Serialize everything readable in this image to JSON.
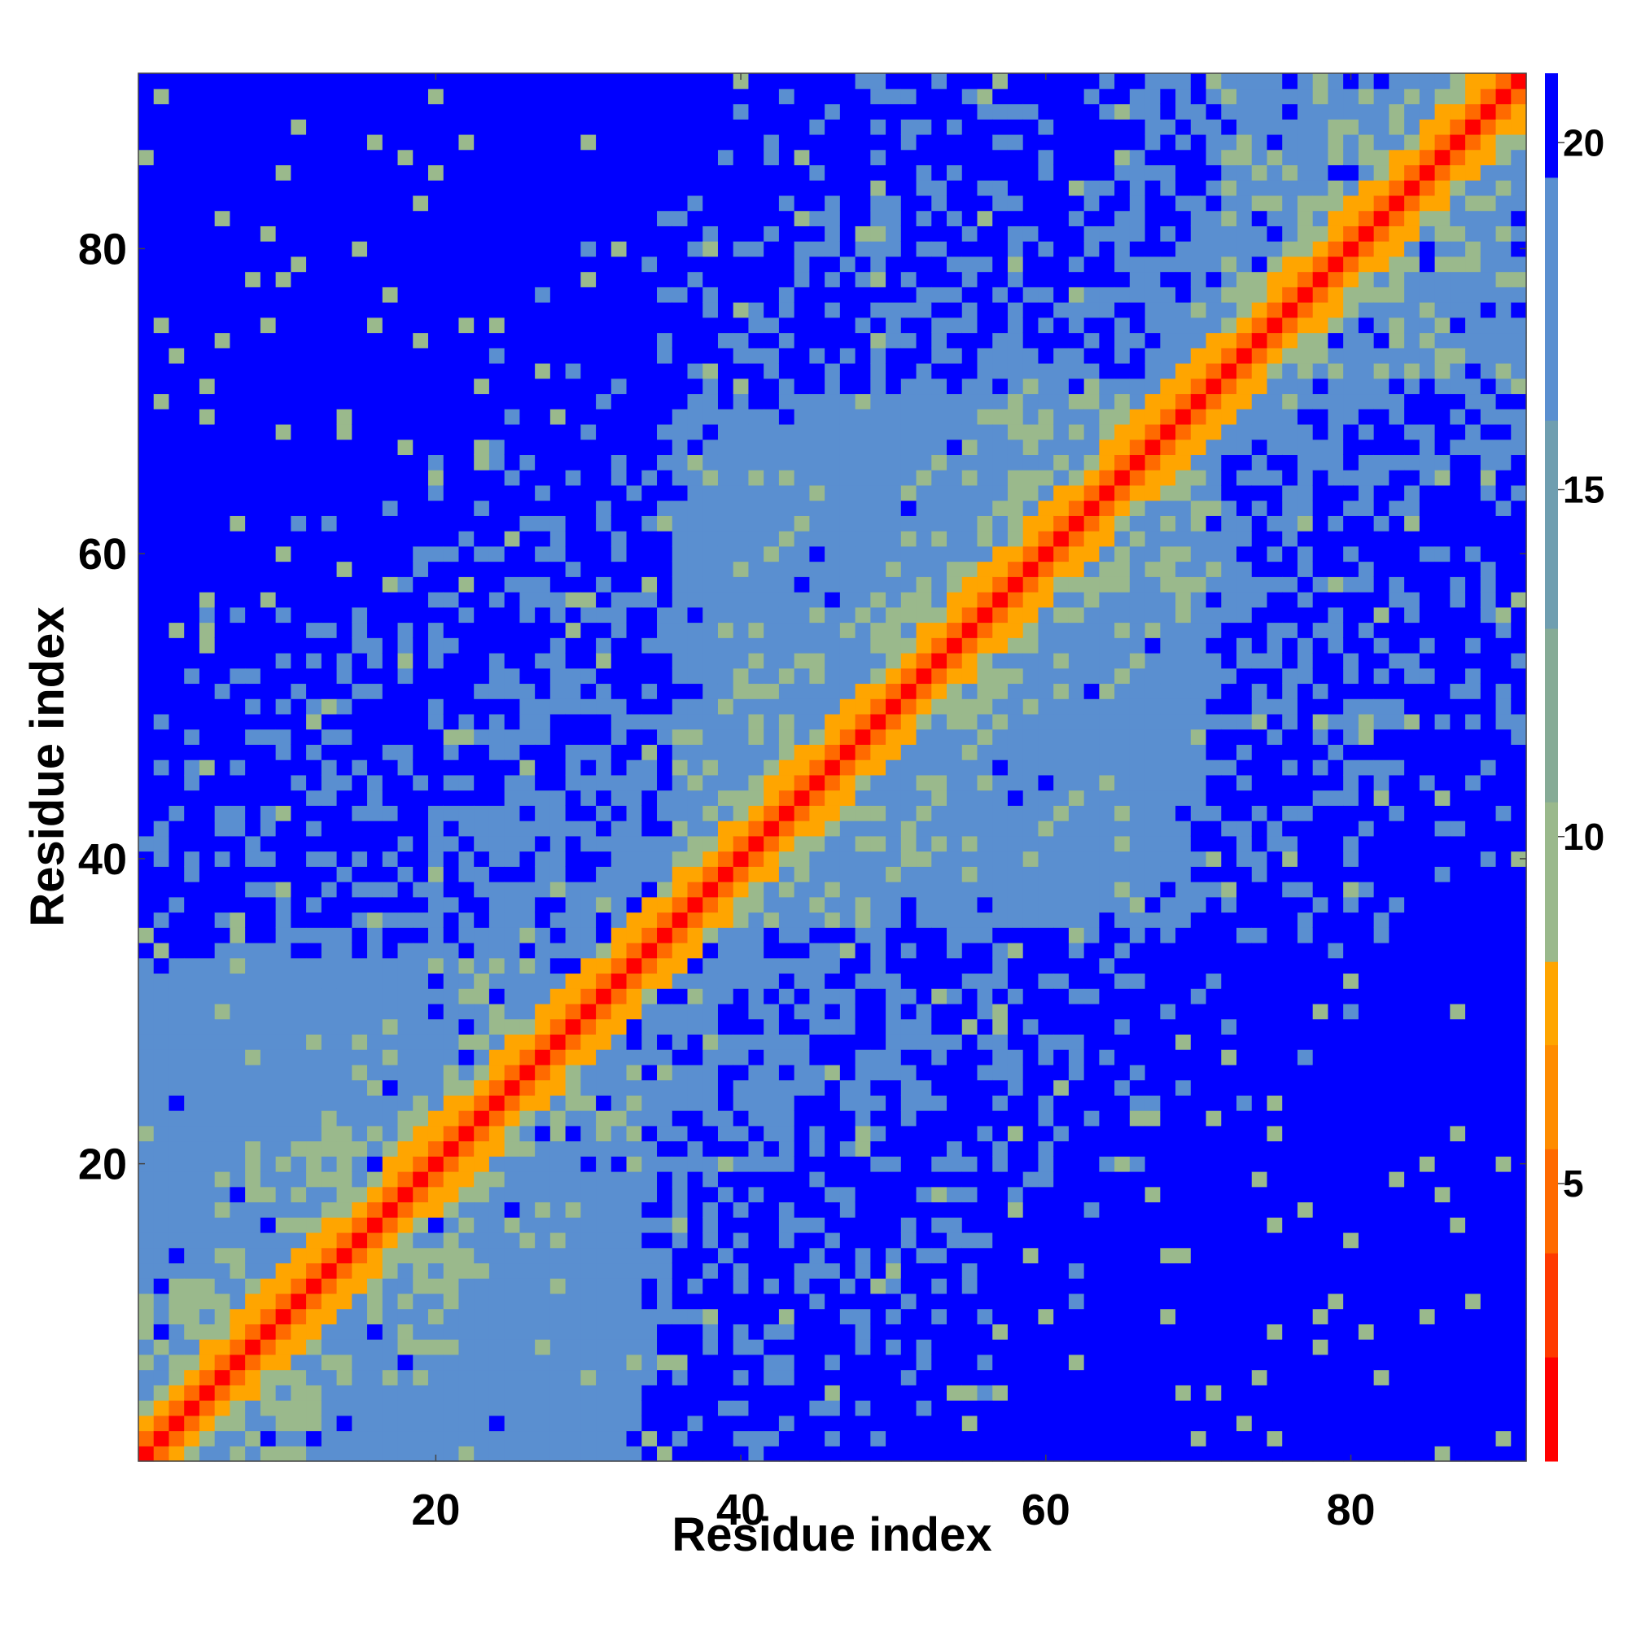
{
  "chart_data": {
    "type": "heatmap",
    "title": "",
    "xlabel": "Residue index",
    "ylabel": "Residue index",
    "n_residues": 91,
    "x_range": [
      0.5,
      91.5
    ],
    "y_range": [
      0.5,
      91.5
    ],
    "x_ticks": [
      20,
      40,
      60,
      80
    ],
    "y_ticks": [
      20,
      40,
      60,
      80
    ],
    "colorbar": {
      "ticks": [
        5,
        10,
        15,
        20
      ],
      "range": [
        1,
        21
      ],
      "colors": {
        "contact": "#ff0000",
        "near": "#ff6a00",
        "close": "#ffa500",
        "mid": "#9ab98c",
        "far": "#5a8fd0",
        "max": "#0000ff"
      }
    },
    "domains": [
      {
        "start": 1,
        "end": 33
      },
      {
        "start": 36,
        "end": 70
      },
      {
        "start": 72,
        "end": 91
      }
    ],
    "max_distance": 21
  }
}
